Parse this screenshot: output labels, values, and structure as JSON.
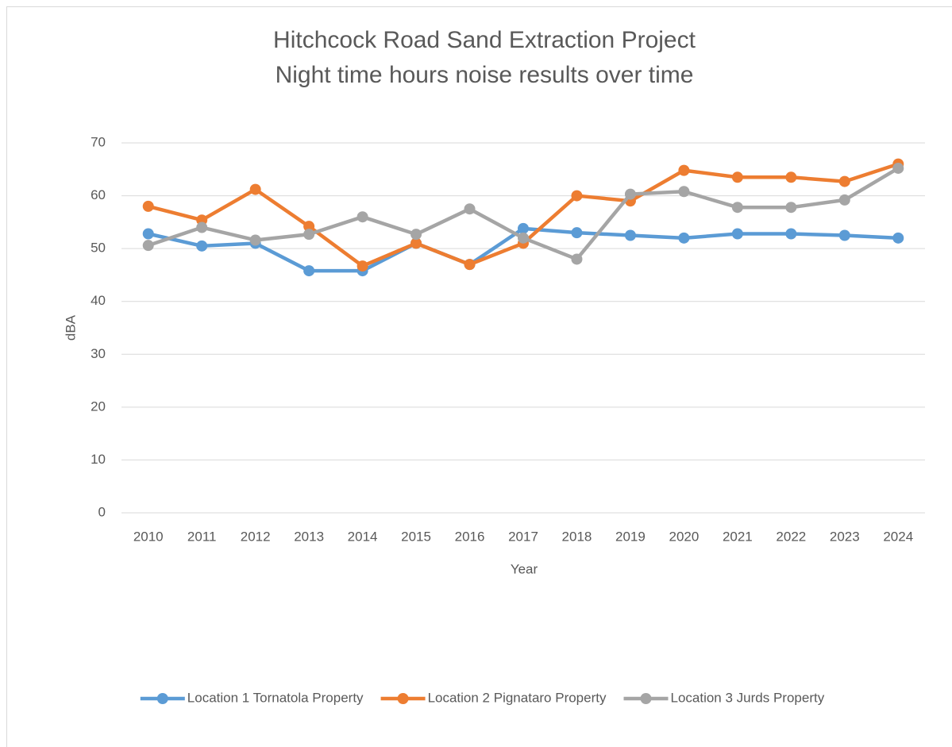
{
  "chart_data": {
    "type": "line",
    "title": "Hitchcock Road Sand Extraction Project",
    "subtitle": "Night time hours noise results over time",
    "x_label": "Year",
    "y_label": "dBA",
    "categories": [
      "2010",
      "2011",
      "2012",
      "2013",
      "2014",
      "2015",
      "2016",
      "2017",
      "2018",
      "2019",
      "2020",
      "2021",
      "2022",
      "2023",
      "2024"
    ],
    "series": [
      {
        "name": "Location 1 Tornatola Property",
        "color": "#5b9bd5",
        "values": [
          52.8,
          50.5,
          51,
          45.8,
          45.8,
          51,
          47,
          53.8,
          53,
          52.5,
          52,
          52.8,
          52.8,
          52.5,
          52
        ]
      },
      {
        "name": "Location 2 Pignataro Property",
        "color": "#ed7d31",
        "values": [
          58,
          55.4,
          61.2,
          54.2,
          46.7,
          51,
          47,
          51,
          60,
          59,
          64.8,
          63.5,
          63.5,
          62.7,
          66
        ]
      },
      {
        "name": "Location 3 Jurds Property",
        "color": "#a5a5a5",
        "values": [
          50.6,
          54,
          51.6,
          52.7,
          56,
          52.7,
          57.5,
          52,
          48,
          60.3,
          60.8,
          57.8,
          57.8,
          59.2,
          65.2
        ]
      }
    ],
    "ylim": [
      0,
      70
    ],
    "yticks": [
      0,
      10,
      20,
      30,
      40,
      50,
      60,
      70
    ],
    "grid": true,
    "legend": "bottom"
  }
}
